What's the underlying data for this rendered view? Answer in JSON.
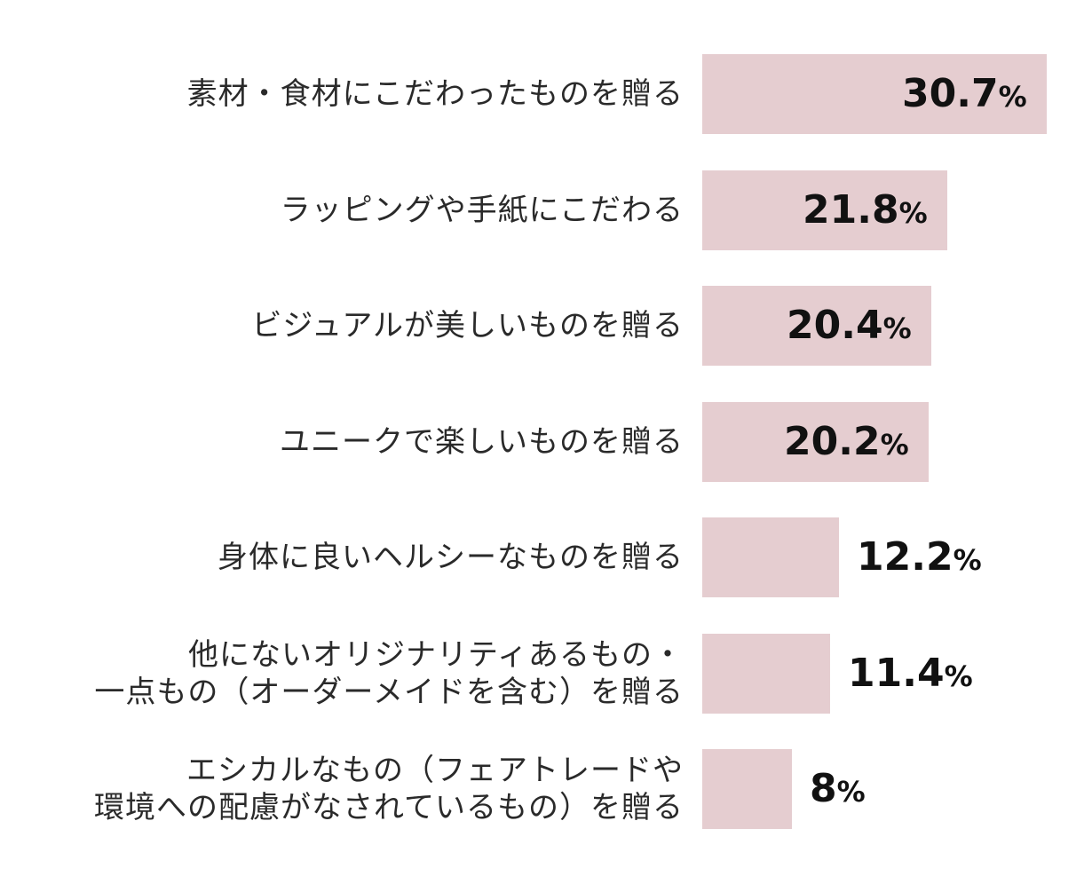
{
  "chart_data": {
    "type": "bar",
    "orientation": "horizontal",
    "categories": [
      "素材・食材にこだわったものを贈る",
      "ラッピングや手紙にこだわる",
      "ビジュアルが美しいものを贈る",
      "ユニークで楽しいものを贈る",
      "身体に良いヘルシーなものを贈る",
      "他にないオリジナリティあるもの・\n一点もの（オーダーメイドを含む）を贈る",
      "エシカルなもの（フェアトレードや\n環境への配慮がなされているもの）を贈る"
    ],
    "values": [
      30.7,
      21.8,
      20.4,
      20.2,
      12.2,
      11.4,
      8
    ],
    "value_labels": [
      "30.7",
      "21.8",
      "20.4",
      "20.2",
      "12.2",
      "11.4",
      "8"
    ],
    "unit": "%",
    "bar_color": "#e5cdd0",
    "xlim": [
      0,
      30.7
    ],
    "grid": false,
    "legend": "none"
  }
}
